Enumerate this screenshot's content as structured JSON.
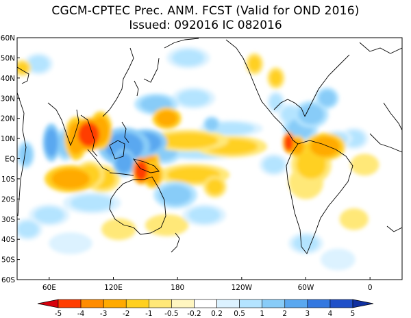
{
  "title": {
    "line1": "CGCM-CPTEC Prec. ANM. FCST  (Valid for OND 2016)",
    "line2": "Issued:  092016 IC 082016"
  },
  "axes": {
    "lat_labels": [
      "60N",
      "50N",
      "40N",
      "30N",
      "20N",
      "10N",
      "EQ",
      "10S",
      "20S",
      "30S",
      "40S",
      "50S",
      "60S"
    ],
    "lat_values": [
      60,
      50,
      40,
      30,
      20,
      10,
      0,
      -10,
      -20,
      -30,
      -40,
      -50,
      -60
    ],
    "lon_labels": [
      "60E",
      "120E",
      "180",
      "120W",
      "60W",
      "0"
    ],
    "lon_values": [
      60,
      120,
      180,
      240,
      300,
      360
    ],
    "lon_range": [
      30,
      390
    ],
    "lat_range": [
      -60,
      60
    ]
  },
  "colorbar": {
    "labels": [
      "-5",
      "-4",
      "-3",
      "-2",
      "-1",
      "-0.5",
      "-0.2",
      "0.2",
      "0.5",
      "1",
      "2",
      "3",
      "4",
      "5"
    ],
    "colors": [
      "#d7000c",
      "#ff3c00",
      "#ff8c00",
      "#ffaa00",
      "#ffd020",
      "#ffe878",
      "#fff6c0",
      "#ffffff",
      "#dcf2ff",
      "#b4e4ff",
      "#88ccf8",
      "#5aa8f0",
      "#3478e0",
      "#2050c8",
      "#1030a0"
    ]
  },
  "anomalies": [
    {
      "lon": 97,
      "lat": 12,
      "value": -4.2,
      "rx": 10,
      "ry": 6
    },
    {
      "lon": 85,
      "lat": 10,
      "value": -2.4,
      "rx": 8,
      "ry": 8
    },
    {
      "lon": 108,
      "lat": 14,
      "value": -2.6,
      "rx": 8,
      "ry": 7
    },
    {
      "lon": 146,
      "lat": -6,
      "value": -4.5,
      "rx": 6,
      "ry": 5
    },
    {
      "lon": 150,
      "lat": -2,
      "value": -2.2,
      "rx": 10,
      "ry": 6
    },
    {
      "lon": 157,
      "lat": -8,
      "value": -2.2,
      "rx": 7,
      "ry": 5
    },
    {
      "lon": 80,
      "lat": -10,
      "value": -2.6,
      "rx": 18,
      "ry": 5
    },
    {
      "lon": 98,
      "lat": -8,
      "value": -1.6,
      "rx": 10,
      "ry": 5
    },
    {
      "lon": 170,
      "lat": 20,
      "value": -2.0,
      "rx": 10,
      "ry": 4
    },
    {
      "lon": 190,
      "lat": 9,
      "value": -1.8,
      "rx": 28,
      "ry": 4
    },
    {
      "lon": 230,
      "lat": 6,
      "value": -1.4,
      "rx": 25,
      "ry": 4
    },
    {
      "lon": 195,
      "lat": -8,
      "value": -1.0,
      "rx": 25,
      "ry": 4
    },
    {
      "lon": 215,
      "lat": -14,
      "value": -1.0,
      "rx": 8,
      "ry": 4
    },
    {
      "lon": 284,
      "lat": 8,
      "value": -4.5,
      "rx": 4,
      "ry": 4
    },
    {
      "lon": 292,
      "lat": 6,
      "value": -2.2,
      "rx": 6,
      "ry": 4
    },
    {
      "lon": 318,
      "lat": 6,
      "value": -2.2,
      "rx": 14,
      "ry": 5
    },
    {
      "lon": 305,
      "lat": -3,
      "value": -1.5,
      "rx": 14,
      "ry": 7
    },
    {
      "lon": 300,
      "lat": -12,
      "value": -0.8,
      "rx": 12,
      "ry": 6
    },
    {
      "lon": 110,
      "lat": -10,
      "value": -1.0,
      "rx": 12,
      "ry": 5
    },
    {
      "lon": 35,
      "lat": 45,
      "value": -1.2,
      "rx": 6,
      "ry": 3
    },
    {
      "lon": 252,
      "lat": 47,
      "value": -1.0,
      "rx": 6,
      "ry": 4
    },
    {
      "lon": 272,
      "lat": 40,
      "value": -1.0,
      "rx": 6,
      "ry": 4
    },
    {
      "lon": 355,
      "lat": -3,
      "value": -0.8,
      "rx": 10,
      "ry": 4
    },
    {
      "lon": 125,
      "lat": -35,
      "value": -0.7,
      "rx": 12,
      "ry": 4
    },
    {
      "lon": 345,
      "lat": -30,
      "value": -0.6,
      "rx": 10,
      "ry": 4
    },
    {
      "lon": 170,
      "lat": -33,
      "value": -0.6,
      "rx": 15,
      "ry": 4
    },
    {
      "lon": 75,
      "lat": 7,
      "value": 1.8,
      "rx": 7,
      "ry": 6
    },
    {
      "lon": 62,
      "lat": 8,
      "value": 2.5,
      "rx": 6,
      "ry": 7
    },
    {
      "lon": 130,
      "lat": 6,
      "value": 2.5,
      "rx": 18,
      "ry": 7
    },
    {
      "lon": 130,
      "lat": -2,
      "value": 2.8,
      "rx": 8,
      "ry": 5
    },
    {
      "lon": 150,
      "lat": 8,
      "value": 2.2,
      "rx": 15,
      "ry": 5
    },
    {
      "lon": 168,
      "lat": 4,
      "value": 1.5,
      "rx": 12,
      "ry": 5
    },
    {
      "lon": 160,
      "lat": 27,
      "value": 1.2,
      "rx": 15,
      "ry": 4
    },
    {
      "lon": 195,
      "lat": 30,
      "value": 1.0,
      "rx": 15,
      "ry": 4
    },
    {
      "lon": 212,
      "lat": 17,
      "value": 2.0,
      "rx": 6,
      "ry": 3
    },
    {
      "lon": 230,
      "lat": 15,
      "value": 1.0,
      "rx": 22,
      "ry": 3
    },
    {
      "lon": 200,
      "lat": 2,
      "value": 0.8,
      "rx": 25,
      "ry": 2
    },
    {
      "lon": 270,
      "lat": -3,
      "value": 0.8,
      "rx": 10,
      "ry": 4
    },
    {
      "lon": 295,
      "lat": 15,
      "value": 1.2,
      "rx": 12,
      "ry": 5
    },
    {
      "lon": 285,
      "lat": 22,
      "value": 1.0,
      "rx": 8,
      "ry": 4
    },
    {
      "lon": 305,
      "lat": 22,
      "value": 1.5,
      "rx": 12,
      "ry": 5
    },
    {
      "lon": 320,
      "lat": 30,
      "value": 1.8,
      "rx": 8,
      "ry": 4
    },
    {
      "lon": 272,
      "lat": 28,
      "value": 0.8,
      "rx": 6,
      "ry": 4
    },
    {
      "lon": 178,
      "lat": -18,
      "value": 1.2,
      "rx": 15,
      "ry": 5
    },
    {
      "lon": 205,
      "lat": -28,
      "value": 0.7,
      "rx": 15,
      "ry": 4
    },
    {
      "lon": 100,
      "lat": -22,
      "value": 0.7,
      "rx": 20,
      "ry": 4
    },
    {
      "lon": 60,
      "lat": -28,
      "value": 0.6,
      "rx": 14,
      "ry": 4
    },
    {
      "lon": 40,
      "lat": -35,
      "value": 0.6,
      "rx": 10,
      "ry": 4
    },
    {
      "lon": 50,
      "lat": 47,
      "value": 0.6,
      "rx": 10,
      "ry": 4
    },
    {
      "lon": 190,
      "lat": 50,
      "value": 0.6,
      "rx": 15,
      "ry": 4
    },
    {
      "lon": 80,
      "lat": -42,
      "value": 0.5,
      "rx": 15,
      "ry": 4
    },
    {
      "lon": 300,
      "lat": -42,
      "value": 0.6,
      "rx": 12,
      "ry": 4
    },
    {
      "lon": 330,
      "lat": -50,
      "value": 0.5,
      "rx": 12,
      "ry": 4
    },
    {
      "lon": 330,
      "lat": 10,
      "value": 1.0,
      "rx": 10,
      "ry": 3
    },
    {
      "lon": 38,
      "lat": 2,
      "value": 1.2,
      "rx": 6,
      "ry": 5
    },
    {
      "lon": 345,
      "lat": 10,
      "value": 0.6,
      "rx": 10,
      "ry": 4
    }
  ]
}
